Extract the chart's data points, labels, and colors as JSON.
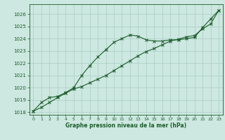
{
  "title": "Graphe pression niveau de la mer (hPa)",
  "background_color": "#cde8e0",
  "plot_bg_color": "#cde8e0",
  "grid_color": "#a8ccC4",
  "line_color": "#1a5c2a",
  "xlim": [
    -0.5,
    23.5
  ],
  "ylim": [
    1017.8,
    1026.8
  ],
  "yticks": [
    1018,
    1019,
    1020,
    1021,
    1022,
    1023,
    1024,
    1025,
    1026
  ],
  "xticks": [
    0,
    1,
    2,
    3,
    4,
    5,
    6,
    7,
    8,
    9,
    10,
    11,
    12,
    13,
    14,
    15,
    16,
    17,
    18,
    19,
    20,
    21,
    22,
    23
  ],
  "line1_x": [
    0,
    1,
    2,
    3,
    4,
    5,
    6,
    7,
    8,
    9,
    10,
    11,
    12,
    13,
    14,
    15,
    16,
    17,
    18,
    19,
    20,
    21,
    22,
    23
  ],
  "line1_y": [
    1018.1,
    1018.8,
    1019.2,
    1019.3,
    1019.6,
    1020.0,
    1021.0,
    1021.8,
    1022.5,
    1023.1,
    1023.7,
    1024.0,
    1024.3,
    1024.2,
    1023.9,
    1023.8,
    1023.8,
    1023.9,
    1023.9,
    1024.0,
    1024.1,
    1024.9,
    1025.6,
    1026.3
  ],
  "line2_x": [
    0,
    1,
    2,
    3,
    4,
    5,
    6,
    7,
    8,
    9,
    10,
    11,
    12,
    13,
    14,
    15,
    16,
    17,
    18,
    19,
    20,
    21,
    22,
    23
  ],
  "line2_y": [
    1018.1,
    1018.4,
    1018.8,
    1019.2,
    1019.55,
    1019.9,
    1020.1,
    1020.4,
    1020.7,
    1021.0,
    1021.4,
    1021.8,
    1022.2,
    1022.6,
    1022.95,
    1023.2,
    1023.5,
    1023.8,
    1023.95,
    1024.15,
    1024.25,
    1024.8,
    1025.2,
    1026.3
  ]
}
